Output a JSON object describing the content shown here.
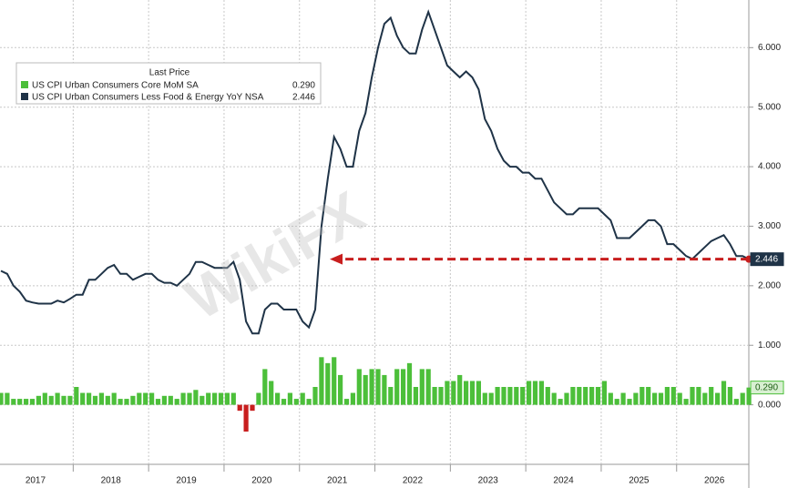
{
  "chart_data": {
    "type": "combo",
    "watermark": "WikiFX",
    "legend_title": "Last Price",
    "categories": [
      "2017",
      null,
      null,
      null,
      null,
      null,
      null,
      null,
      null,
      null,
      null,
      null,
      "2018",
      null,
      null,
      null,
      null,
      null,
      null,
      null,
      null,
      null,
      null,
      null,
      "2019",
      null,
      null,
      null,
      null,
      null,
      null,
      null,
      null,
      null,
      null,
      null,
      "2020",
      null,
      null,
      null,
      null,
      null,
      null,
      null,
      null,
      null,
      null,
      null,
      "2021",
      null,
      null,
      null,
      null,
      null,
      null,
      null,
      null,
      null,
      null,
      null,
      "2022",
      null,
      null,
      null,
      null,
      null,
      null,
      null,
      null,
      null,
      null,
      null,
      "2023",
      null,
      null,
      null,
      null,
      null,
      null,
      null,
      null,
      null,
      null,
      null,
      "2024",
      null,
      null,
      null,
      null,
      null,
      null,
      null,
      null,
      null,
      null,
      null,
      "2025",
      null,
      null,
      null,
      null,
      null,
      null,
      null,
      null,
      null,
      null,
      null,
      "2026",
      null,
      null,
      null,
      null,
      null,
      null,
      null,
      null,
      null,
      null,
      null
    ],
    "series": [
      {
        "name": "US CPI Urban Consumers Core MoM SA",
        "type": "bar",
        "color": "#4cbf3a",
        "negative_color": "#c81e1e",
        "last_price_label": "0.290",
        "values": [
          0.2,
          0.2,
          0.1,
          0.1,
          0.1,
          0.1,
          0.15,
          0.2,
          0.15,
          0.2,
          0.15,
          0.15,
          0.3,
          0.2,
          0.2,
          0.15,
          0.2,
          0.15,
          0.2,
          0.1,
          0.1,
          0.15,
          0.2,
          0.2,
          0.2,
          0.1,
          0.15,
          0.15,
          0.1,
          0.2,
          0.2,
          0.25,
          0.15,
          0.2,
          0.2,
          0.2,
          0.2,
          0.2,
          -0.1,
          -0.45,
          -0.1,
          0.2,
          0.6,
          0.4,
          0.2,
          0.1,
          0.2,
          0.1,
          0.2,
          0.1,
          0.3,
          0.8,
          0.7,
          0.8,
          0.5,
          0.1,
          0.2,
          0.6,
          0.5,
          0.6,
          0.6,
          0.5,
          0.3,
          0.6,
          0.6,
          0.7,
          0.3,
          0.6,
          0.6,
          0.3,
          0.3,
          0.4,
          0.4,
          0.5,
          0.4,
          0.4,
          0.4,
          0.2,
          0.2,
          0.3,
          0.3,
          0.3,
          0.3,
          0.3,
          0.4,
          0.4,
          0.4,
          0.3,
          0.2,
          0.1,
          0.2,
          0.3,
          0.3,
          0.3,
          0.3,
          0.3,
          0.4,
          0.2,
          0.1,
          0.2,
          0.1,
          0.2,
          0.3,
          0.3,
          0.2,
          0.2,
          0.3,
          0.3,
          0.2,
          0.1,
          0.3,
          0.3,
          0.2,
          0.3,
          0.2,
          0.4,
          0.3,
          0.1,
          0.2,
          0.29
        ]
      },
      {
        "name": "US CPI Urban Consumers Less Food & Energy YoY NSA",
        "type": "line",
        "color": "#1f3347",
        "last_price_label": "2.446",
        "values": [
          2.25,
          2.2,
          2.0,
          1.9,
          1.75,
          1.72,
          1.7,
          1.7,
          1.7,
          1.75,
          1.72,
          1.78,
          1.85,
          1.85,
          2.1,
          2.1,
          2.2,
          2.3,
          2.35,
          2.2,
          2.2,
          2.1,
          2.15,
          2.2,
          2.2,
          2.1,
          2.05,
          2.05,
          2.0,
          2.1,
          2.2,
          2.4,
          2.4,
          2.35,
          2.3,
          2.3,
          2.3,
          2.4,
          2.1,
          1.4,
          1.2,
          1.2,
          1.6,
          1.7,
          1.7,
          1.6,
          1.6,
          1.6,
          1.4,
          1.3,
          1.6,
          3.0,
          3.8,
          4.5,
          4.3,
          4.0,
          4.0,
          4.6,
          4.9,
          5.5,
          6.0,
          6.4,
          6.5,
          6.2,
          6.0,
          5.9,
          5.9,
          6.3,
          6.6,
          6.3,
          6.0,
          5.7,
          5.6,
          5.5,
          5.6,
          5.5,
          5.3,
          4.8,
          4.6,
          4.3,
          4.1,
          4.0,
          4.0,
          3.9,
          3.9,
          3.8,
          3.8,
          3.6,
          3.4,
          3.3,
          3.2,
          3.2,
          3.3,
          3.3,
          3.3,
          3.3,
          3.2,
          3.1,
          2.8,
          2.8,
          2.8,
          2.9,
          3.0,
          3.1,
          3.1,
          3.0,
          2.7,
          2.7,
          2.6,
          2.5,
          2.45,
          2.55,
          2.65,
          2.75,
          2.8,
          2.85,
          2.7,
          2.5,
          2.5,
          2.446
        ]
      }
    ],
    "ylim": [
      -1.0,
      6.8
    ],
    "yticks": [
      {
        "value": 0,
        "label": "0.000"
      },
      {
        "value": 1,
        "label": "1.000"
      },
      {
        "value": 2,
        "label": "2.000"
      },
      {
        "value": 3,
        "label": "3.000"
      },
      {
        "value": 4,
        "label": "4.000"
      },
      {
        "value": 5,
        "label": "5.000"
      },
      {
        "value": 6,
        "label": "6.000"
      }
    ],
    "grid": true,
    "annotation_color": "#c81e1e"
  }
}
